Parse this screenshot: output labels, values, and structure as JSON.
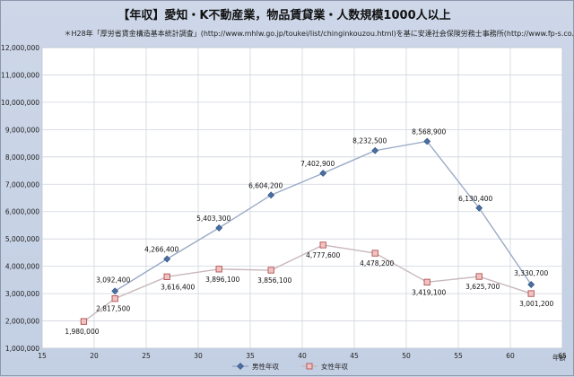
{
  "title": "【年収】愛知・K不動産業，物品賃貸業・人数規模1000人以上",
  "source_note": "＊H28年「厚労省賃金構造基本統計調査」(http://www.mhlw.go.jp/toukei/list/chinginkouzou.html)を基に安達社会保険労務士事務所(http://www.fp-s.co.jp)が作成",
  "chart_data": {
    "type": "line",
    "title": "【年収】愛知・K不動産業，物品賃貸業・人数規模1000人以上",
    "xlabel": "年齢",
    "ylabel": "",
    "xlim": [
      15,
      65
    ],
    "ylim": [
      1000000,
      12000000
    ],
    "x_ticks": [
      15,
      20,
      25,
      30,
      35,
      40,
      45,
      50,
      55,
      60,
      65
    ],
    "y_ticks": [
      1000000,
      2000000,
      3000000,
      4000000,
      5000000,
      6000000,
      7000000,
      8000000,
      9000000,
      10000000,
      11000000,
      12000000
    ],
    "x_tick_labels": [
      "15",
      "20",
      "25",
      "30",
      "35",
      "40",
      "45",
      "50",
      "55",
      "60",
      "65"
    ],
    "y_tick_labels": [
      "1,000,000",
      "2,000,000",
      "3,000,000",
      "4,000,000",
      "5,000,000",
      "6,000,000",
      "7,000,000",
      "8,000,000",
      "9,000,000",
      "10,000,000",
      "11,000,000",
      "12,000,000"
    ],
    "grid": true,
    "legend_position": "bottom",
    "series": [
      {
        "name": "男性年収",
        "color": "#4a6fa0",
        "marker": "diamond",
        "points": [
          {
            "x": 22,
            "y": 3092400,
            "label": "3,092,400"
          },
          {
            "x": 27,
            "y": 4266400,
            "label": "4,266,400"
          },
          {
            "x": 32,
            "y": 5403300,
            "label": "5,403,300"
          },
          {
            "x": 37,
            "y": 6604200,
            "label": "6,604,200"
          },
          {
            "x": 42,
            "y": 7402900,
            "label": "7,402,900"
          },
          {
            "x": 47,
            "y": 8232500,
            "label": "8,232,500"
          },
          {
            "x": 52,
            "y": 8568900,
            "label": "8,568,900"
          },
          {
            "x": 57,
            "y": 6130400,
            "label": "6,130,400"
          },
          {
            "x": 62,
            "y": 3330700,
            "label": "3,330,700"
          }
        ]
      },
      {
        "name": "女性年収",
        "color": "#c87070",
        "marker": "square",
        "points": [
          {
            "x": 19,
            "y": 1980000,
            "label": "1,980,000"
          },
          {
            "x": 22,
            "y": 2817500,
            "label": "2,817,500"
          },
          {
            "x": 27,
            "y": 3616400,
            "label": "3,616,400"
          },
          {
            "x": 32,
            "y": 3896100,
            "label": "3,896,100"
          },
          {
            "x": 37,
            "y": 3856100,
            "label": "3,856,100"
          },
          {
            "x": 42,
            "y": 4777600,
            "label": "4,777,600"
          },
          {
            "x": 47,
            "y": 4478200,
            "label": "4,478,200"
          },
          {
            "x": 52,
            "y": 3419100,
            "label": "3,419,100"
          },
          {
            "x": 57,
            "y": 3625700,
            "label": "3,625,700"
          },
          {
            "x": 62,
            "y": 3001200,
            "label": "3,001,200"
          }
        ]
      }
    ]
  }
}
